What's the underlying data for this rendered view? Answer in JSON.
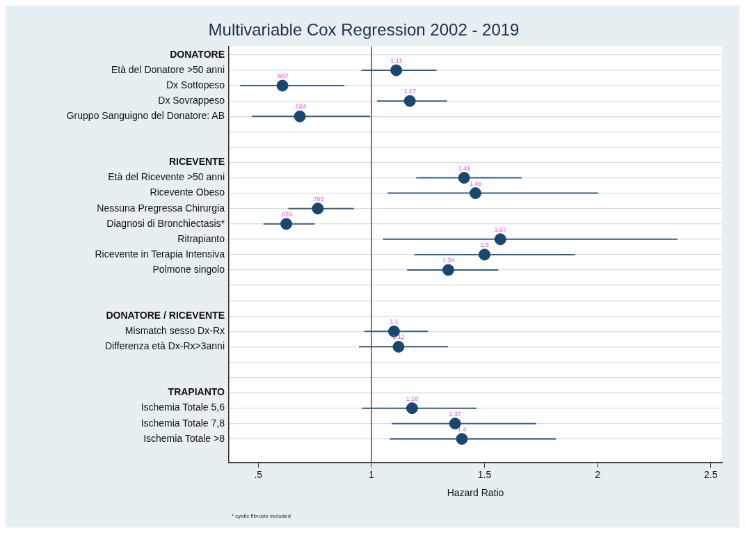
{
  "chart_data": {
    "type": "scatter",
    "orientation": "horizontal",
    "title": "Multivariable Cox Regression 2002 - 2019",
    "xlabel": "Hazard Ratio",
    "categories": [
      "DONATORE",
      "Età del Donatore >50 anni",
      "Dx Sottopeso",
      "Dx Sovrappeso",
      "Gruppo Sanguigno del Donatore: AB",
      null,
      null,
      "RICEVENTE",
      "Età del Ricevente >50 anni",
      "Ricevente Obeso",
      "Nessuna Pregressa Chirurgia",
      "Diagnosi di Bronchiectasis*",
      "Ritrapianto",
      "Ricevente in Terapia Intensiva",
      "Polmone singolo",
      null,
      null,
      "DONATORE / RICEVENTE",
      "Mismatch sesso Dx-Rx",
      "Differenza età Dx-Rx>3anni",
      null,
      null,
      "TRAPIANTO",
      "Ischemia Totale 5,6",
      "Ischemia Totale 7,8",
      "Ischemia Totale >8"
    ],
    "values": [
      null,
      1.11,
      0.607,
      1.17,
      0.684,
      null,
      null,
      null,
      1.41,
      1.46,
      0.763,
      0.624,
      1.57,
      1.5,
      1.34,
      null,
      null,
      null,
      1.1,
      1.12,
      null,
      null,
      null,
      1.18,
      1.37,
      1.4
    ],
    "errors": [
      null,
      [
        0.955,
        1.288
      ],
      [
        0.42,
        0.881
      ],
      [
        1.025,
        1.335
      ],
      [
        0.472,
        0.995
      ],
      null,
      null,
      null,
      [
        1.198,
        1.664
      ],
      [
        1.072,
        2.002
      ],
      [
        0.633,
        0.923
      ],
      [
        0.523,
        0.749
      ],
      [
        1.051,
        2.353
      ],
      [
        1.19,
        1.9
      ],
      [
        1.158,
        1.561
      ],
      null,
      null,
      null,
      [
        0.969,
        1.25
      ],
      [
        0.945,
        1.339
      ],
      null,
      null,
      null,
      [
        0.958,
        1.465
      ],
      [
        1.09,
        1.729
      ],
      [
        1.081,
        1.816
      ]
    ],
    "value_labels": [
      null,
      "1.11",
      ".607",
      "1.17",
      ".684",
      null,
      null,
      null,
      "1.41",
      "1.46",
      ".763",
      ".624",
      "1.57",
      "1.5",
      "1.34",
      null,
      null,
      null,
      "1.1",
      "1.12",
      null,
      null,
      null,
      "1.18",
      "1.37",
      "1.4"
    ],
    "color": "#1a476f",
    "marker": "circle",
    "grid": "y",
    "xlim": [
      0.37,
      2.55
    ],
    "xticks": [
      {
        "value": 0.5,
        "label": ".5"
      },
      1,
      1.5,
      2,
      2.5
    ],
    "ref_lines": [
      {
        "axis": "x",
        "value": 1,
        "color": "#d0103a"
      }
    ],
    "annotations": [
      "* cystic fibrosis included"
    ]
  }
}
